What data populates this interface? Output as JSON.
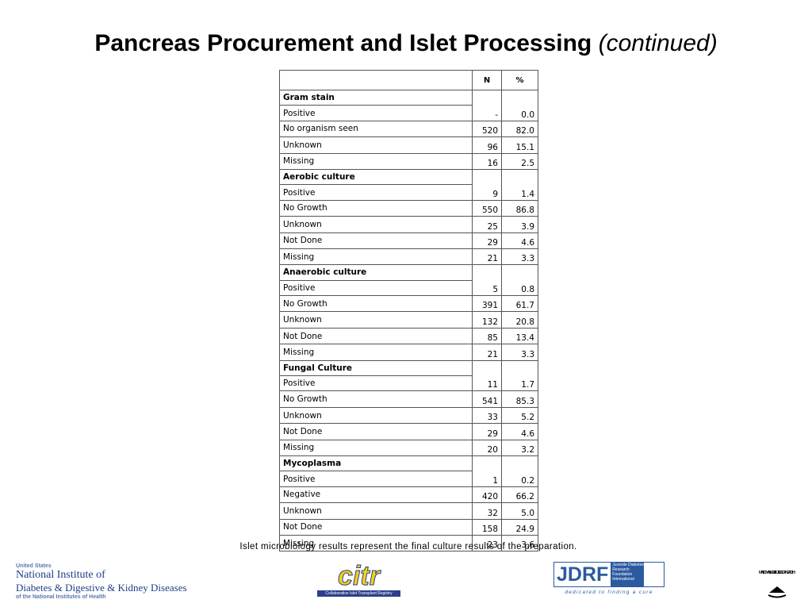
{
  "title": {
    "main": "Pancreas Procurement and Islet Processing",
    "emphasis": "(continued)"
  },
  "table": {
    "columns": [
      "N",
      "%"
    ],
    "sections": [
      {
        "name": "Gram stain",
        "rows": [
          [
            "Positive",
            "-",
            "0.0"
          ],
          [
            "No organism seen",
            "520",
            "82.0"
          ],
          [
            "Unknown",
            "96",
            "15.1"
          ],
          [
            "Missing",
            "16",
            "2.5"
          ]
        ]
      },
      {
        "name": "Aerobic culture",
        "rows": [
          [
            "Positive",
            "9",
            "1.4"
          ],
          [
            "No Growth",
            "550",
            "86.8"
          ],
          [
            "Unknown",
            "25",
            "3.9"
          ],
          [
            "Not Done",
            "29",
            "4.6"
          ],
          [
            "Missing",
            "21",
            "3.3"
          ]
        ]
      },
      {
        "name": "Anaerobic culture",
        "rows": [
          [
            "Positive",
            "5",
            "0.8"
          ],
          [
            "No Growth",
            "391",
            "61.7"
          ],
          [
            "Unknown",
            "132",
            "20.8"
          ],
          [
            "Not Done",
            "85",
            "13.4"
          ],
          [
            "Missing",
            "21",
            "3.3"
          ]
        ]
      },
      {
        "name": "Fungal Culture",
        "rows": [
          [
            "Positive",
            "11",
            "1.7"
          ],
          [
            "No Growth",
            "541",
            "85.3"
          ],
          [
            "Unknown",
            "33",
            "5.2"
          ],
          [
            "Not Done",
            "29",
            "4.6"
          ],
          [
            "Missing",
            "20",
            "3.2"
          ]
        ]
      },
      {
        "name": "Mycoplasma",
        "rows": [
          [
            "Positive",
            "1",
            "0.2"
          ],
          [
            "Negative",
            "420",
            "66.2"
          ],
          [
            "Unknown",
            "32",
            "5.0"
          ],
          [
            "Not Done",
            "158",
            "24.9"
          ],
          [
            "Missing",
            "23",
            "3.6"
          ]
        ]
      }
    ]
  },
  "caption": "Islet microbiology results represent the final culture results of the preparation.",
  "logos": {
    "niddk": {
      "line1": "United States",
      "line2": "National Institute of",
      "line3": "Diabetes & Digestive & Kidney Diseases",
      "line4": "of the National Institutes of Health"
    },
    "citr": {
      "name": "citr",
      "subtitle": "Collaborative Islet Transplant Registry"
    },
    "jdrf": {
      "name": "JDRF",
      "full": "Juvenile Diabetes Research Foundation International",
      "tagline": "dedicated to finding a cure"
    },
    "nih": {
      "seal": "NATIONAL INSTITUTES OF HEALTH"
    }
  }
}
